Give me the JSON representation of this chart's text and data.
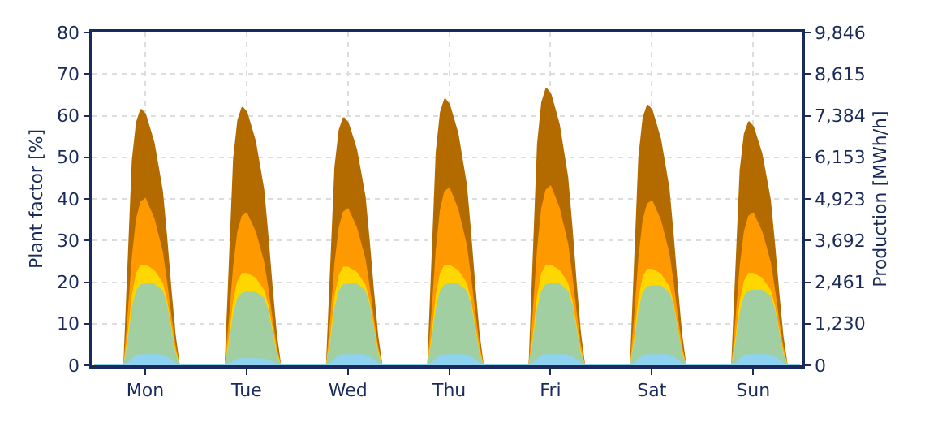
{
  "chart_data": {
    "type": "area",
    "ylabel": "Plant factor [%]",
    "y2label": "Production [MWh/h]",
    "categories": [
      null,
      null,
      null,
      null,
      null,
      null,
      null,
      null,
      null,
      null,
      null,
      null,
      "Mon",
      null,
      null,
      null,
      null,
      null,
      null,
      null,
      null,
      null,
      null,
      null,
      null,
      null,
      null,
      null,
      null,
      null,
      null,
      null,
      null,
      null,
      null,
      null,
      "Tue",
      null,
      null,
      null,
      null,
      null,
      null,
      null,
      null,
      null,
      null,
      null,
      null,
      null,
      null,
      null,
      null,
      null,
      null,
      null,
      null,
      null,
      null,
      null,
      "Wed",
      null,
      null,
      null,
      null,
      null,
      null,
      null,
      null,
      null,
      null,
      null,
      null,
      null,
      null,
      null,
      null,
      null,
      null,
      null,
      null,
      null,
      null,
      null,
      "Thu",
      null,
      null,
      null,
      null,
      null,
      null,
      null,
      null,
      null,
      null,
      null,
      null,
      null,
      null,
      null,
      null,
      null,
      null,
      null,
      null,
      null,
      null,
      null,
      "Fri",
      null,
      null,
      null,
      null,
      null,
      null,
      null,
      null,
      null,
      null,
      null,
      null,
      null,
      null,
      null,
      null,
      null,
      null,
      null,
      null,
      null,
      null,
      null,
      "Sat",
      null,
      null,
      null,
      null,
      null,
      null,
      null,
      null,
      null,
      null,
      null,
      null,
      null,
      null,
      null,
      null,
      null,
      null,
      null,
      null,
      null,
      null,
      null,
      "Sun",
      null,
      null,
      null,
      null,
      null,
      null,
      null,
      null,
      null,
      null,
      null
    ],
    "series": [
      {
        "color": "#b36b00",
        "values": [
          0,
          0,
          0,
          0,
          0,
          0,
          0,
          0,
          24.6,
          49.2,
          58.4,
          61.5,
          60.3,
          56.9,
          53.5,
          47.7,
          41.8,
          30.8,
          18.5,
          7.4,
          0,
          0,
          0,
          0,
          0,
          0,
          0,
          0,
          0,
          0,
          0,
          0,
          24.8,
          49.6,
          58.9,
          62,
          60.8,
          57.4,
          53.9,
          48.1,
          42.2,
          31,
          18.6,
          7.4,
          0,
          0,
          0,
          0,
          0,
          0,
          0,
          0,
          0,
          0,
          0,
          0,
          23.8,
          47.6,
          56.5,
          59.5,
          58.3,
          55.1,
          51.8,
          46.2,
          40.5,
          29.8,
          17.9,
          7.1,
          0,
          0,
          0,
          0,
          0,
          0,
          0,
          0,
          0,
          0,
          0,
          0,
          25.6,
          51.2,
          60.8,
          64,
          62.7,
          59.2,
          55.7,
          49.6,
          43.5,
          32,
          19.2,
          7.7,
          0,
          0,
          0,
          0,
          0,
          0,
          0,
          0,
          0,
          0,
          0,
          0,
          26.6,
          53.2,
          63.2,
          66.5,
          65.2,
          61.6,
          57.9,
          51.6,
          45.2,
          33.3,
          20,
          8,
          0,
          0,
          0,
          0,
          0,
          0,
          0,
          0,
          0,
          0,
          0,
          0,
          25,
          50,
          59.4,
          62.5,
          61.3,
          57.9,
          54.4,
          48.5,
          42.5,
          31.3,
          18.8,
          7.5,
          0,
          0,
          0,
          0,
          0,
          0,
          0,
          0,
          0,
          0,
          0,
          0,
          23.4,
          46.8,
          55.6,
          58.5,
          57.3,
          54.1,
          50.9,
          45.4,
          39.8,
          29.3,
          17.6,
          7,
          0,
          0,
          0,
          0
        ]
      },
      {
        "color": "#ff9900",
        "values": [
          0,
          0,
          0,
          0,
          0,
          0,
          0,
          0,
          12,
          26,
          35.2,
          39.2,
          40,
          37.6,
          35.2,
          31.2,
          27.2,
          20,
          12,
          4.8,
          0,
          0,
          0,
          0,
          0,
          0,
          0,
          0,
          0,
          0,
          0,
          0,
          11,
          23.7,
          32.1,
          35.8,
          36.5,
          34.3,
          32.1,
          28.5,
          24.8,
          18.3,
          11,
          4.4,
          0,
          0,
          0,
          0,
          0,
          0,
          0,
          0,
          0,
          0,
          0,
          0,
          11.3,
          24.4,
          33,
          36.8,
          37.5,
          35.3,
          33,
          29.3,
          25.5,
          18.8,
          11.3,
          4.5,
          0,
          0,
          0,
          0,
          0,
          0,
          0,
          0,
          0,
          0,
          0,
          0,
          12.8,
          27.6,
          37.4,
          41.7,
          42.5,
          40,
          37.4,
          33.2,
          28.9,
          21.3,
          12.8,
          5.1,
          0,
          0,
          0,
          0,
          0,
          0,
          0,
          0,
          0,
          0,
          0,
          0,
          12.9,
          28,
          37.8,
          42.1,
          43,
          40.4,
          37.8,
          33.5,
          29.2,
          21.5,
          12.9,
          5.2,
          0,
          0,
          0,
          0,
          0,
          0,
          0,
          0,
          0,
          0,
          0,
          0,
          11.9,
          25.7,
          34.8,
          38.7,
          39.5,
          37.2,
          34.8,
          30.9,
          26.9,
          19.8,
          11.9,
          4.7,
          0,
          0,
          0,
          0,
          0,
          0,
          0,
          0,
          0,
          0,
          0,
          0,
          11,
          23.7,
          32.1,
          35.8,
          36.5,
          34.3,
          32.1,
          28.5,
          24.8,
          18.3,
          11,
          4.4,
          0,
          0,
          0,
          0
        ]
      },
      {
        "color": "#ffd700",
        "values": [
          0,
          0,
          0,
          0,
          0,
          0,
          0,
          0,
          7.2,
          16.8,
          22.1,
          24,
          24,
          23.4,
          22.8,
          21.3,
          19.7,
          15.6,
          9.6,
          3.6,
          0,
          0,
          0,
          0,
          0,
          0,
          0,
          0,
          0,
          0,
          0,
          0,
          6.6,
          15.4,
          20.2,
          22,
          22,
          21.5,
          20.9,
          19.5,
          18,
          14.3,
          8.8,
          3.3,
          0,
          0,
          0,
          0,
          0,
          0,
          0,
          0,
          0,
          0,
          0,
          0,
          7.1,
          16.5,
          21.6,
          23.5,
          23.5,
          22.9,
          22.3,
          20.8,
          19.3,
          15.3,
          9.4,
          3.5,
          0,
          0,
          0,
          0,
          0,
          0,
          0,
          0,
          0,
          0,
          0,
          0,
          7.2,
          16.8,
          22.1,
          24,
          24,
          23.4,
          22.8,
          21.3,
          19.7,
          15.6,
          9.6,
          3.6,
          0,
          0,
          0,
          0,
          0,
          0,
          0,
          0,
          0,
          0,
          0,
          0,
          7.2,
          16.8,
          22.1,
          24,
          24,
          23.4,
          22.8,
          21.3,
          19.7,
          15.6,
          9.6,
          3.6,
          0,
          0,
          0,
          0,
          0,
          0,
          0,
          0,
          0,
          0,
          0,
          0,
          6.9,
          16.1,
          21.2,
          23,
          23,
          22.5,
          21.9,
          20.4,
          18.9,
          15,
          9.2,
          3.5,
          0,
          0,
          0,
          0,
          0,
          0,
          0,
          0,
          0,
          0,
          0,
          0,
          6.6,
          15.4,
          20.2,
          22,
          22,
          21.5,
          20.9,
          19.5,
          18,
          14.3,
          8.8,
          3.3,
          0,
          0,
          0,
          0
        ]
      },
      {
        "color": "#a2cfa2",
        "values": [
          0,
          0,
          0,
          0,
          0,
          0,
          0,
          0,
          5.9,
          13.7,
          17.9,
          19.3,
          19.5,
          19.5,
          19.5,
          18.7,
          17.9,
          14.6,
          8.8,
          2.9,
          0,
          0,
          0,
          0,
          0,
          0,
          0,
          0,
          0,
          0,
          0,
          0,
          5.3,
          12.3,
          16.1,
          17.3,
          17.5,
          17.5,
          17.5,
          16.8,
          16.1,
          13.1,
          7.9,
          2.6,
          0,
          0,
          0,
          0,
          0,
          0,
          0,
          0,
          0,
          0,
          0,
          0,
          5.9,
          13.7,
          17.9,
          19.3,
          19.5,
          19.5,
          19.5,
          18.7,
          17.9,
          14.6,
          8.8,
          2.9,
          0,
          0,
          0,
          0,
          0,
          0,
          0,
          0,
          0,
          0,
          0,
          0,
          5.9,
          13.7,
          17.9,
          19.3,
          19.5,
          19.5,
          19.5,
          18.7,
          17.9,
          14.6,
          8.8,
          2.9,
          0,
          0,
          0,
          0,
          0,
          0,
          0,
          0,
          0,
          0,
          0,
          0,
          5.9,
          13.7,
          17.9,
          19.3,
          19.5,
          19.5,
          19.5,
          18.7,
          17.9,
          14.6,
          8.8,
          2.9,
          0,
          0,
          0,
          0,
          0,
          0,
          0,
          0,
          0,
          0,
          0,
          0,
          5.7,
          13.3,
          17.5,
          18.8,
          19,
          19,
          19,
          18.3,
          17.5,
          14.3,
          8.6,
          2.9,
          0,
          0,
          0,
          0,
          0,
          0,
          0,
          0,
          0,
          0,
          0,
          0,
          5.4,
          12.6,
          16.6,
          17.8,
          18,
          18,
          18,
          17.3,
          16.6,
          13.5,
          8.1,
          2.7,
          0,
          0,
          0,
          0
        ]
      },
      {
        "color": "#8fd3f0",
        "values": [
          0,
          0,
          0,
          0,
          0,
          0,
          0,
          0,
          0.5,
          1.5,
          2.3,
          2.5,
          2.5,
          2.5,
          2.5,
          2.5,
          2.4,
          2,
          1.3,
          0.5,
          0,
          0,
          0,
          0,
          0,
          0,
          0,
          0,
          0,
          0,
          0,
          0,
          0.3,
          0.9,
          1.4,
          1.5,
          1.5,
          1.5,
          1.5,
          1.5,
          1.4,
          1.2,
          0.8,
          0.3,
          0,
          0,
          0,
          0,
          0,
          0,
          0,
          0,
          0,
          0,
          0,
          0,
          0.5,
          1.5,
          2.3,
          2.5,
          2.5,
          2.5,
          2.5,
          2.5,
          2.4,
          2,
          1.3,
          0.5,
          0,
          0,
          0,
          0,
          0,
          0,
          0,
          0,
          0,
          0,
          0,
          0,
          0.5,
          1.5,
          2.3,
          2.5,
          2.5,
          2.5,
          2.5,
          2.5,
          2.4,
          2,
          1.3,
          0.5,
          0,
          0,
          0,
          0,
          0,
          0,
          0,
          0,
          0,
          0,
          0,
          0,
          0.5,
          1.5,
          2.3,
          2.5,
          2.5,
          2.5,
          2.5,
          2.5,
          2.4,
          2,
          1.3,
          0.5,
          0,
          0,
          0,
          0,
          0,
          0,
          0,
          0,
          0,
          0,
          0,
          0,
          0.5,
          1.5,
          2.3,
          2.5,
          2.5,
          2.5,
          2.5,
          2.5,
          2.4,
          2,
          1.3,
          0.5,
          0,
          0,
          0,
          0,
          0,
          0,
          0,
          0,
          0,
          0,
          0,
          0,
          0.5,
          1.5,
          2.3,
          2.5,
          2.5,
          2.5,
          2.5,
          2.5,
          2.4,
          2,
          1.3,
          0.5,
          0,
          0,
          0,
          0
        ]
      }
    ],
    "ylim": [
      0,
      80
    ],
    "yticks": [
      0,
      10,
      20,
      30,
      40,
      50,
      60,
      70,
      80
    ],
    "y2lim": [
      0,
      9846
    ],
    "y2ticks": [
      {
        "value": 0,
        "label": "0"
      },
      {
        "value": 1230,
        "label": "1,230"
      },
      {
        "value": 2461,
        "label": "2,461"
      },
      {
        "value": 3692,
        "label": "3,692"
      },
      {
        "value": 4923,
        "label": "4,923"
      },
      {
        "value": 6153,
        "label": "6,153"
      },
      {
        "value": 7384,
        "label": "7,384"
      },
      {
        "value": 8615,
        "label": "8,615"
      },
      {
        "value": 9846,
        "label": "9,846"
      }
    ],
    "grid": true
  }
}
